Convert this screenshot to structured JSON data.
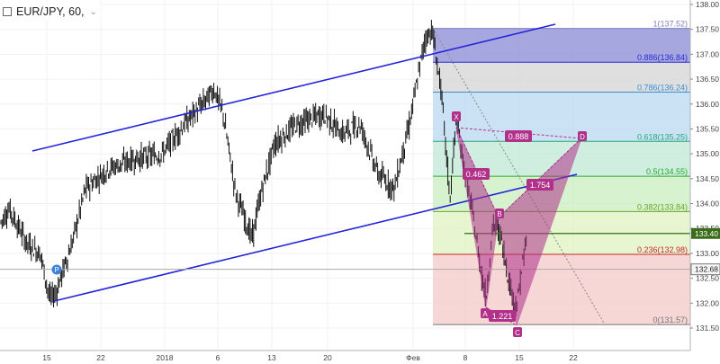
{
  "header": {
    "symbol_interval": "EUR/JPY, 60,",
    "menu_chevron": "⌄"
  },
  "price_axis": {
    "ticks": [
      "138.00",
      "137.50",
      "137.00",
      "136.50",
      "136.00",
      "135.50",
      "135.00",
      "134.50",
      "134.00",
      "133.50",
      "133.00",
      "132.50",
      "132.00",
      "131.50"
    ],
    "tick_values": [
      138.0,
      137.5,
      137.0,
      136.5,
      136.0,
      135.5,
      135.0,
      134.5,
      134.0,
      133.5,
      133.0,
      132.5,
      132.0,
      131.5
    ],
    "current_price": "132.68",
    "current_price_value": 132.68,
    "hline_price": "133.40",
    "hline_price_value": 133.4
  },
  "time_axis": {
    "labels": [
      "15",
      "22",
      "2018",
      "6",
      "13",
      "20",
      "Фев",
      "8",
      "15",
      "22"
    ]
  },
  "fibonacci": {
    "levels": [
      {
        "label": "1(137.52)",
        "value": 137.52,
        "color": "#7f7fbf"
      },
      {
        "label": "0.886(136.84)",
        "value": 136.84,
        "color": "#2b2bd0"
      },
      {
        "label": "0.786(136.24)",
        "value": 136.24,
        "color": "#3a8fd0"
      },
      {
        "label": "0.618(135.25)",
        "value": 135.25,
        "color": "#22a87a"
      },
      {
        "label": "0.5(134.55)",
        "value": 134.55,
        "color": "#2aa82a"
      },
      {
        "label": "0.382(133.84)",
        "value": 133.84,
        "color": "#6aa62a"
      },
      {
        "label": "0.236(132.98)",
        "value": 132.98,
        "color": "#c82828"
      },
      {
        "label": "0(131.57)",
        "value": 131.57,
        "color": "#777777"
      }
    ]
  },
  "harmonic": {
    "points": [
      {
        "label": "X",
        "value": 135.8
      },
      {
        "label": "A",
        "value": 131.9
      },
      {
        "label": "B",
        "value": 133.8
      },
      {
        "label": "C",
        "value": 131.6
      },
      {
        "label": "D",
        "value": 135.4
      }
    ],
    "ratios": [
      "0.888",
      "0.462",
      "1.754",
      "1.221"
    ],
    "color": "#b0308a"
  },
  "channel_color": "#2424d8",
  "marker": {
    "label": "P",
    "color": "#3b82d8"
  }
}
